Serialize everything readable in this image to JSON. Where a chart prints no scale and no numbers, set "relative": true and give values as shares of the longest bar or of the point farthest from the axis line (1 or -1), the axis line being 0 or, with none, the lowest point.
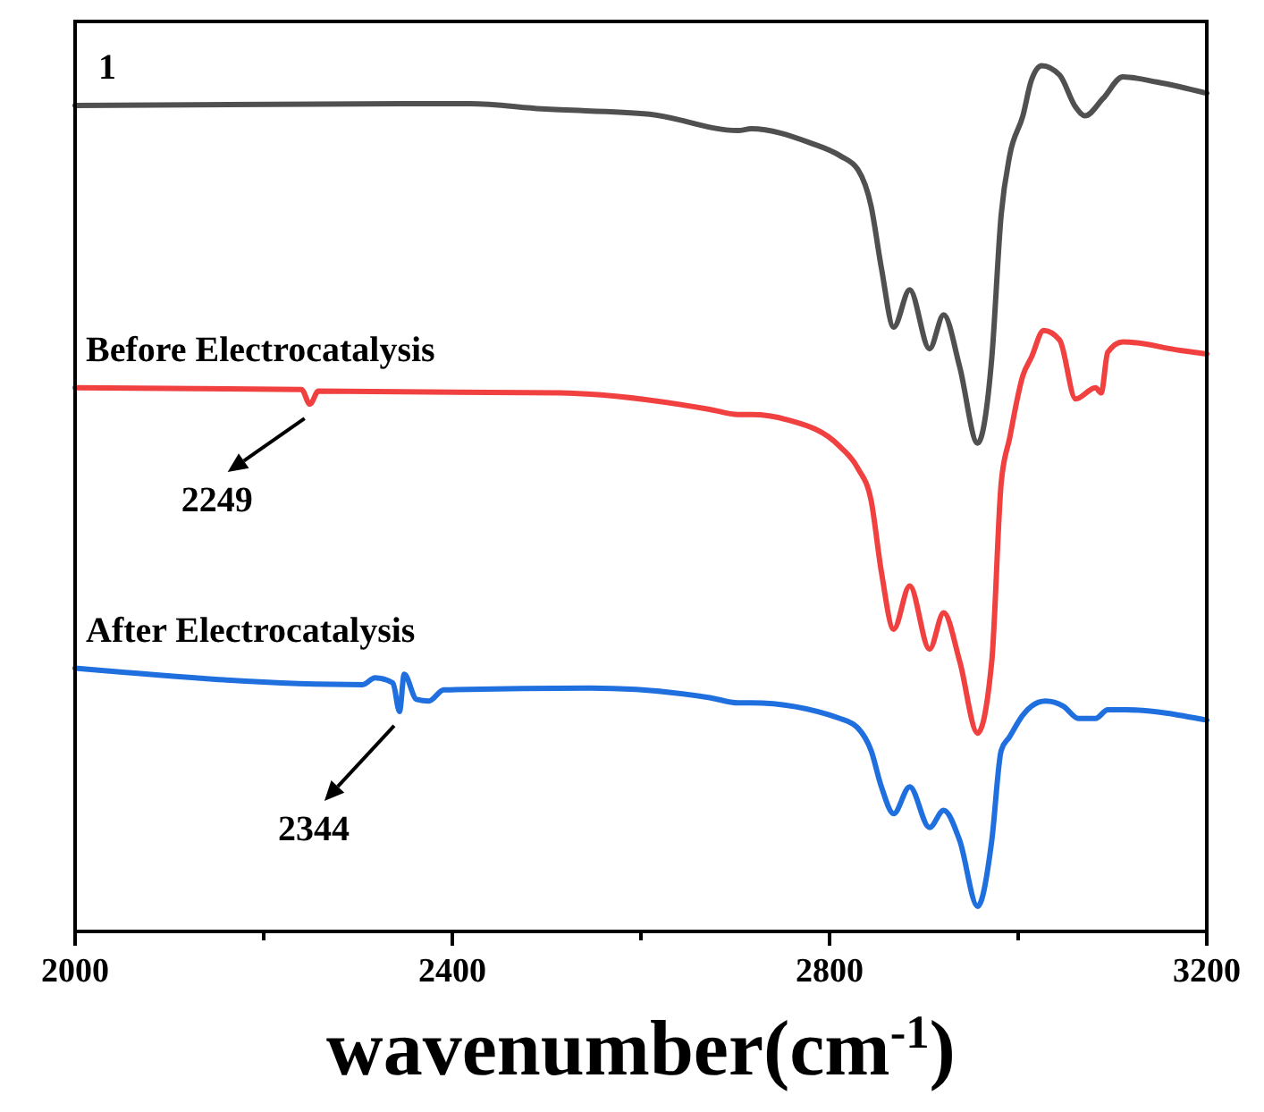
{
  "chart_data": {
    "type": "line",
    "relative": true,
    "xlabel": "wavenumber(cm$^{-1}$)",
    "xlim": [
      2000,
      3200
    ],
    "xticks": [
      2000,
      {
        "value": 2200,
        "label": null
      },
      2400,
      {
        "value": 2600,
        "label": null
      },
      2800,
      {
        "value": 3000,
        "label": null
      },
      3200
    ],
    "tick_labels": "x",
    "legend": false,
    "grid": false,
    "marker": "none",
    "line_style": "solid",
    "series": [
      {
        "name": "1",
        "color": "#505050",
        "x": [
          2000,
          2419,
          2495,
          2609,
          2703,
          2717,
          2779,
          2811,
          2830,
          2844,
          2855,
          2868,
          2885,
          2906,
          2921,
          2938,
          2957,
          2972,
          2982,
          2991,
          3005,
          3014,
          3025,
          3044,
          3061,
          3071,
          3090,
          3111,
          3147,
          3200
        ],
        "values": [
          0.954,
          0.956,
          0.95,
          0.944,
          0.925,
          0.927,
          0.911,
          0.896,
          0.88,
          0.838,
          0.766,
          0.698,
          0.741,
          0.673,
          0.712,
          0.652,
          0.564,
          0.662,
          0.828,
          0.896,
          0.942,
          0.983,
          1.0,
          0.989,
          0.952,
          0.942,
          0.962,
          0.987,
          0.981,
          0.968
        ]
      },
      {
        "name": "Before Electrocatalysis",
        "color": "#f04040",
        "x": [
          2000,
          2240,
          2249,
          2258,
          2515,
          2673,
          2703,
          2717,
          2755,
          2811,
          2830,
          2844,
          2855,
          2868,
          2885,
          2906,
          2921,
          2938,
          2957,
          2972,
          2982,
          2991,
          3005,
          3014,
          3027,
          3044,
          3061,
          3082,
          3088,
          3095,
          3111,
          3172,
          3200
        ],
        "values": [
          0.628,
          0.626,
          0.609,
          0.624,
          0.622,
          0.603,
          0.597,
          0.597,
          0.591,
          0.56,
          0.535,
          0.498,
          0.415,
          0.349,
          0.399,
          0.326,
          0.368,
          0.312,
          0.229,
          0.312,
          0.518,
          0.57,
          0.642,
          0.663,
          0.694,
          0.683,
          0.615,
          0.628,
          0.622,
          0.669,
          0.681,
          0.671,
          0.667
        ]
      },
      {
        "name": "After Electrocatalysis",
        "color": "#1f6fdf",
        "x": [
          2000,
          2305,
          2318,
          2337,
          2344,
          2349,
          2362,
          2375,
          2391,
          2546,
          2673,
          2703,
          2717,
          2811,
          2830,
          2844,
          2855,
          2868,
          2885,
          2906,
          2921,
          2938,
          2957,
          2972,
          2982,
          2991,
          3005,
          3014,
          3029,
          3048,
          3064,
          3082,
          3095,
          3114,
          3200
        ],
        "values": [
          0.304,
          0.285,
          0.293,
          0.287,
          0.254,
          0.297,
          0.268,
          0.266,
          0.279,
          0.281,
          0.27,
          0.264,
          0.264,
          0.246,
          0.235,
          0.209,
          0.167,
          0.136,
          0.167,
          0.12,
          0.14,
          0.105,
          0.029,
          0.105,
          0.209,
          0.225,
          0.25,
          0.26,
          0.266,
          0.26,
          0.246,
          0.246,
          0.256,
          0.256,
          0.244
        ]
      }
    ],
    "annotations": [
      {
        "text": "2249",
        "x": 2249,
        "y": 0.609
      },
      {
        "text": "2344",
        "x": 2344,
        "y": 0.254
      }
    ]
  }
}
